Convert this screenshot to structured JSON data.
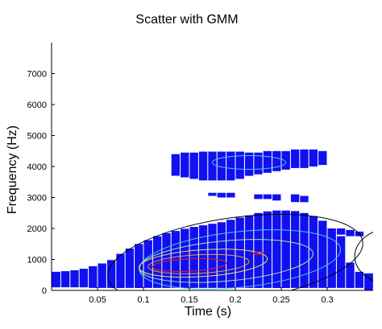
{
  "chart_data": {
    "type": "scatter",
    "title": "Scatter with GMM",
    "xlabel": "Time (s)",
    "ylabel": "Frequency (Hz)",
    "xlim": [
      0,
      0.35
    ],
    "ylim": [
      0,
      8000
    ],
    "xticks": [
      0.05,
      0.1,
      0.15,
      0.2,
      0.25,
      0.3
    ],
    "xtick_labels": [
      "0.05",
      "0.1",
      "0.15",
      "0.2",
      "0.25",
      "0.3"
    ],
    "yticks": [
      0,
      1000,
      2000,
      3000,
      4000,
      5000,
      6000,
      7000
    ],
    "ytick_labels": [
      "0",
      "1000",
      "2000",
      "3000",
      "4000",
      "5000",
      "6000",
      "7000"
    ],
    "grid": false,
    "marker_color": "#1010f0",
    "band_columns": [
      {
        "t": 0.005,
        "fmin": 100,
        "fmax": 600
      },
      {
        "t": 0.015,
        "fmin": 100,
        "fmax": 620
      },
      {
        "t": 0.025,
        "fmin": 100,
        "fmax": 650
      },
      {
        "t": 0.035,
        "fmin": 100,
        "fmax": 700
      },
      {
        "t": 0.045,
        "fmin": 80,
        "fmax": 780
      },
      {
        "t": 0.055,
        "fmin": 80,
        "fmax": 870
      },
      {
        "t": 0.065,
        "fmin": 80,
        "fmax": 980
      },
      {
        "t": 0.075,
        "fmin": 80,
        "fmax": 1180
      },
      {
        "t": 0.085,
        "fmin": 80,
        "fmax": 1350
      },
      {
        "t": 0.095,
        "fmin": 80,
        "fmax": 1500
      },
      {
        "t": 0.105,
        "fmin": 80,
        "fmax": 1620
      },
      {
        "t": 0.115,
        "fmin": 80,
        "fmax": 1750
      },
      {
        "t": 0.125,
        "fmin": 80,
        "fmax": 1850
      },
      {
        "t": 0.135,
        "fmin": 80,
        "fmax": 1920
      },
      {
        "t": 0.145,
        "fmin": 80,
        "fmax": 1990
      },
      {
        "t": 0.155,
        "fmin": 80,
        "fmax": 2050
      },
      {
        "t": 0.165,
        "fmin": 80,
        "fmax": 2100
      },
      {
        "t": 0.175,
        "fmin": 80,
        "fmax": 2150
      },
      {
        "t": 0.185,
        "fmin": 80,
        "fmax": 2200
      },
      {
        "t": 0.195,
        "fmin": 80,
        "fmax": 2280
      },
      {
        "t": 0.205,
        "fmin": 80,
        "fmax": 2350
      },
      {
        "t": 0.215,
        "fmin": 80,
        "fmax": 2420
      },
      {
        "t": 0.225,
        "fmin": 80,
        "fmax": 2500
      },
      {
        "t": 0.235,
        "fmin": 80,
        "fmax": 2550
      },
      {
        "t": 0.245,
        "fmin": 80,
        "fmax": 2580
      },
      {
        "t": 0.255,
        "fmin": 80,
        "fmax": 2580
      },
      {
        "t": 0.265,
        "fmin": 80,
        "fmax": 2560
      },
      {
        "t": 0.275,
        "fmin": 80,
        "fmax": 2500
      },
      {
        "t": 0.285,
        "fmin": 80,
        "fmax": 2400
      },
      {
        "t": 0.295,
        "fmin": 80,
        "fmax": 2250
      },
      {
        "t": 0.305,
        "fmin": 80,
        "fmax": 2000
      },
      {
        "t": 0.315,
        "fmin": 80,
        "fmax": 1750
      },
      {
        "t": 0.325,
        "fmin": 80,
        "fmax": 900
      },
      {
        "t": 0.335,
        "fmin": 80,
        "fmax": 600
      },
      {
        "t": 0.345,
        "fmin": 80,
        "fmax": 520
      }
    ],
    "upper_cluster_columns": [
      {
        "t": 0.135,
        "fmin": 3700,
        "fmax": 4400
      },
      {
        "t": 0.145,
        "fmin": 3650,
        "fmax": 4450
      },
      {
        "t": 0.155,
        "fmin": 3600,
        "fmax": 4450
      },
      {
        "t": 0.165,
        "fmin": 3550,
        "fmax": 4480
      },
      {
        "t": 0.175,
        "fmin": 3550,
        "fmax": 4480
      },
      {
        "t": 0.185,
        "fmin": 3550,
        "fmax": 4480
      },
      {
        "t": 0.195,
        "fmin": 3550,
        "fmax": 4480
      },
      {
        "t": 0.205,
        "fmin": 3600,
        "fmax": 4480
      },
      {
        "t": 0.215,
        "fmin": 3700,
        "fmax": 4450
      },
      {
        "t": 0.225,
        "fmin": 3750,
        "fmax": 4450
      },
      {
        "t": 0.235,
        "fmin": 3800,
        "fmax": 4500
      },
      {
        "t": 0.245,
        "fmin": 3850,
        "fmax": 4500
      },
      {
        "t": 0.255,
        "fmin": 3900,
        "fmax": 4500
      },
      {
        "t": 0.265,
        "fmin": 3950,
        "fmax": 4550
      },
      {
        "t": 0.275,
        "fmin": 3950,
        "fmax": 4550
      },
      {
        "t": 0.285,
        "fmin": 4000,
        "fmax": 4550
      },
      {
        "t": 0.295,
        "fmin": 4050,
        "fmax": 4500
      }
    ],
    "mid_cluster_columns": [
      {
        "t": 0.175,
        "fmin": 3050,
        "fmax": 3150
      },
      {
        "t": 0.185,
        "fmin": 3000,
        "fmax": 3150
      },
      {
        "t": 0.195,
        "fmin": 3000,
        "fmax": 3150
      },
      {
        "t": 0.225,
        "fmin": 2950,
        "fmax": 3100
      },
      {
        "t": 0.235,
        "fmin": 2950,
        "fmax": 3100
      },
      {
        "t": 0.245,
        "fmin": 2900,
        "fmax": 3100
      },
      {
        "t": 0.265,
        "fmin": 2850,
        "fmax": 3100
      },
      {
        "t": 0.275,
        "fmin": 2850,
        "fmax": 3050
      }
    ],
    "right_tail_columns": [
      {
        "t": 0.315,
        "fmin": 1800,
        "fmax": 2000
      },
      {
        "t": 0.325,
        "fmin": 1750,
        "fmax": 1950
      },
      {
        "t": 0.335,
        "fmin": 1750,
        "fmax": 1900
      },
      {
        "t": 0.345,
        "fmin": 0,
        "fmax": 550
      }
    ],
    "gmm_contours": [
      {
        "color": "#000000",
        "cx": 0.2,
        "cy": 1000,
        "rx": 0.14,
        "ry": 1350,
        "rot": -8
      },
      {
        "color": "#4ac8e8",
        "cx": 0.205,
        "cy": 1000,
        "rx": 0.11,
        "ry": 900,
        "rot": -6
      },
      {
        "color": "#9ef0a0",
        "cx": 0.19,
        "cy": 950,
        "rx": 0.095,
        "ry": 650,
        "rot": -5
      },
      {
        "color": "#e6e650",
        "cx": 0.165,
        "cy": 880,
        "rx": 0.07,
        "ry": 430,
        "rot": -4
      },
      {
        "color": "#ff9a3a",
        "cx": 0.16,
        "cy": 850,
        "rx": 0.055,
        "ry": 300,
        "rot": -3
      },
      {
        "color": "#e8202a",
        "cx": 0.15,
        "cy": 820,
        "rx": 0.04,
        "ry": 200,
        "rot": -3
      },
      {
        "color": "#e8202a",
        "cx": 0.225,
        "cy": 1200,
        "rx": 0.006,
        "ry": 40,
        "rot": 0
      },
      {
        "color": "#4ac8e8",
        "cx": 0.215,
        "cy": 4130,
        "rx": 0.04,
        "ry": 220,
        "rot": 0
      },
      {
        "color": "#000000",
        "cx": 0.37,
        "cy": 1100,
        "rx": 0.04,
        "ry": 900,
        "rot": 0
      }
    ]
  }
}
